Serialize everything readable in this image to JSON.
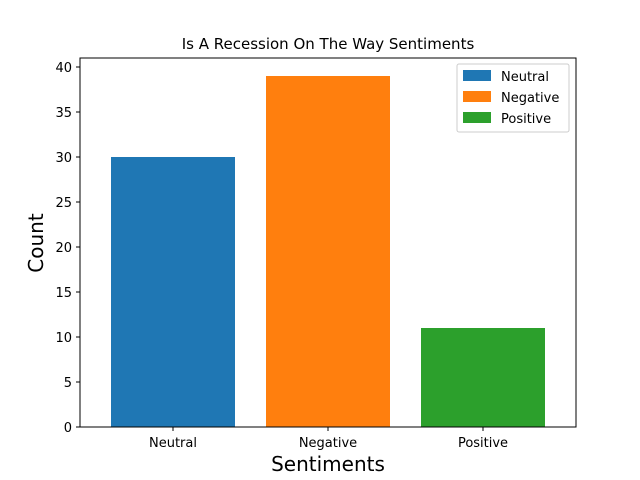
{
  "chart_data": {
    "type": "bar",
    "title": "Is A Recession On The Way Sentiments",
    "xlabel": "Sentiments",
    "ylabel": "Count",
    "categories": [
      "Neutral",
      "Negative",
      "Positive"
    ],
    "values": [
      30,
      39,
      11
    ],
    "colors": [
      "#1f77b4",
      "#ff7f0e",
      "#2ca02c"
    ],
    "ylim": [
      0,
      41
    ],
    "yticks": [
      0,
      5,
      10,
      15,
      20,
      25,
      30,
      35,
      40
    ],
    "grid": false,
    "legend": {
      "placement": "top-right",
      "entries": [
        "Neutral",
        "Negative",
        "Positive"
      ]
    }
  }
}
